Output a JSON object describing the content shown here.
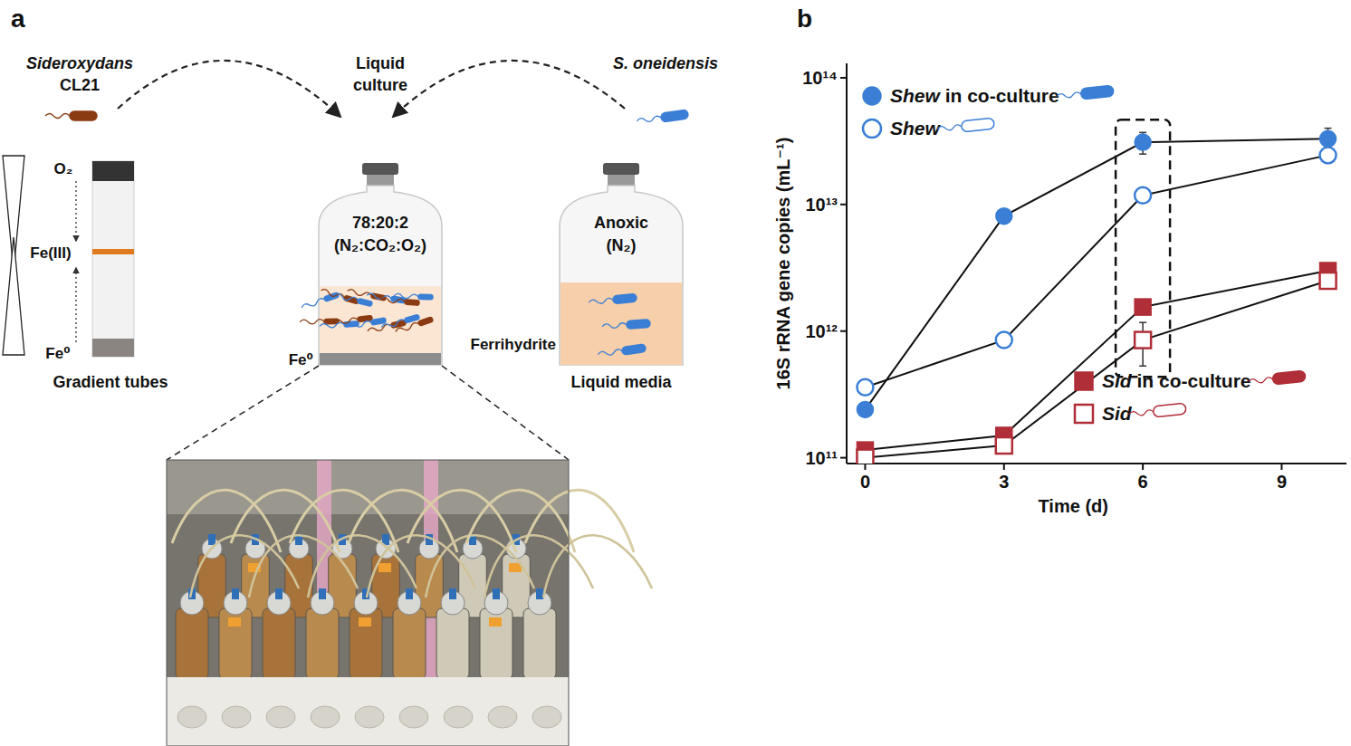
{
  "diagram": {
    "panel_label": "a",
    "left_organism": {
      "name": "Sideroxydans",
      "strain": "CL21"
    },
    "right_organism": {
      "name": "S. oneidensis"
    },
    "center_title": [
      "Liquid",
      "culture"
    ],
    "gradient_tube": {
      "labels": [
        "O₂",
        "Fe(III)",
        "Fe⁰"
      ],
      "caption": "Gradient tubes"
    },
    "co_culture_bottle": {
      "gas": [
        "78:20:2",
        "(N₂:CO₂:O₂)"
      ],
      "substrate": "Fe⁰"
    },
    "anoxic_bottle": {
      "gas": [
        "Anoxic",
        "(N₂)"
      ],
      "substrate": "Ferrihydrite",
      "caption": "Liquid media"
    }
  },
  "chart_data": {
    "type": "line",
    "panel_label": "b",
    "x_label": "Time (d)",
    "y_label": "16S rRNA gene copies (mL⁻¹)",
    "x": [
      0,
      3,
      6,
      10
    ],
    "xlim": [
      -0.4,
      10.4
    ],
    "xticks": [
      0,
      3,
      6,
      9
    ],
    "ylim": [
      90000000000.0,
      130000000000000.0
    ],
    "yticks": [
      {
        "value": 100000000000.0,
        "label": "10¹¹"
      },
      {
        "value": 1000000000000.0,
        "label": "10¹²"
      },
      {
        "value": 10000000000000.0,
        "label": "10¹³"
      },
      {
        "value": 100000000000000.0,
        "label": "10¹⁴"
      }
    ],
    "log": "y",
    "grid": false,
    "highlight_x": 6,
    "series": [
      {
        "name": "Shew in co-culture",
        "color": "#3a7fd5",
        "marker": "circle",
        "line_style": "solid",
        "legend": "upper left",
        "values": [
          240000000000.0,
          8100000000000.0,
          31000000000000.0,
          33000000000000.0
        ],
        "errors": [
          0,
          0,
          6000000000000.0,
          7000000000000.0
        ]
      },
      {
        "name": "Shew",
        "color": "#3a7fd5",
        "marker": "open_circle",
        "line_style": "solid",
        "legend": "upper left",
        "values": [
          360000000000.0,
          850000000000.0,
          11800000000000.0,
          24500000000000.0
        ],
        "errors": [
          0,
          0,
          0,
          0
        ]
      },
      {
        "name": "Sid in co-culture",
        "color": "#b02e38",
        "marker": "square",
        "line_style": "solid",
        "legend": "lower right",
        "values": [
          115000000000.0,
          150000000000.0,
          1550000000000.0,
          3000000000000.0
        ],
        "errors": [
          0,
          0,
          0,
          0
        ]
      },
      {
        "name": "Sid",
        "color": "#b02e38",
        "marker": "open_square",
        "line_style": "solid",
        "legend": "lower right",
        "values": [
          100000000000.0,
          125000000000.0,
          850000000000.0,
          2500000000000.0
        ],
        "errors": [
          0,
          0,
          320000000000.0,
          300000000000.0
        ]
      }
    ]
  }
}
